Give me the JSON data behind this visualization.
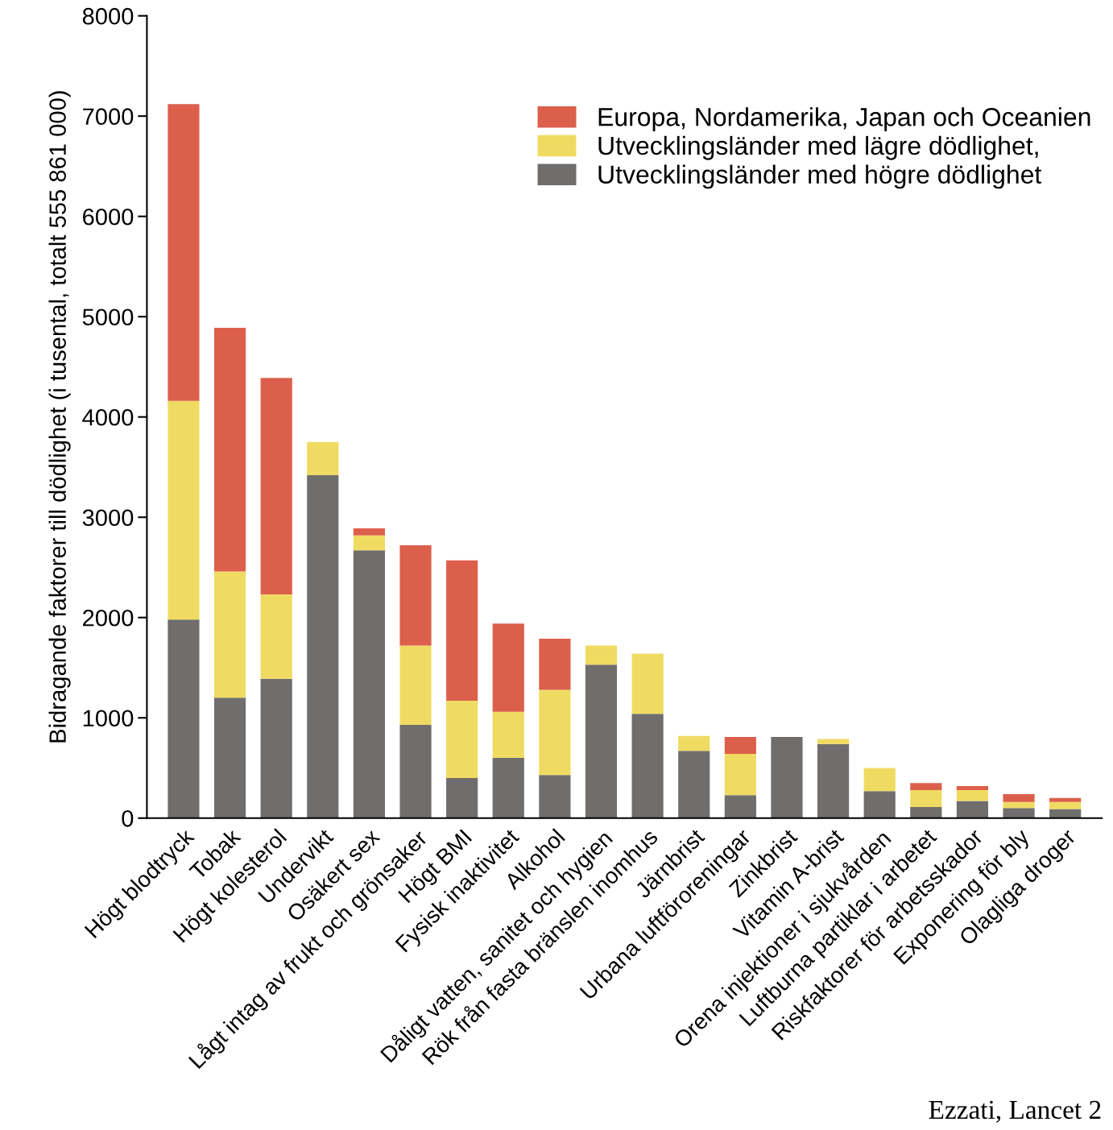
{
  "chart_data": {
    "type": "bar",
    "stacked": true,
    "ylabel": "Bidragande faktorer till dödlighet (i tusental, totalt 555 861 000)",
    "categories": [
      "Högt blodtryck",
      "Tobak",
      "Högt kolesterol",
      "Undervikt",
      "Osäkert sex",
      "Lågt intag av frukt och grönsaker",
      "Högt BMI",
      "Fysisk inaktivitet",
      "Alkohol",
      "Dåligt vatten, sanitet och hygien",
      "Rök från fasta bränslen inomhus",
      "Järnbrist",
      "Urbana luftföroreningar",
      "Zinkbrist",
      "Vitamin A-brist",
      "Orena injektioner i sjukvården",
      "Luftburna partiklar i arbetet",
      "Riskfaktorer för arbetsskador",
      "Exponering för bly",
      "Olagliga droger"
    ],
    "series": [
      {
        "name": "Utvecklingsländer med högre dödlighet",
        "color": "#706e6c",
        "values": [
          1980,
          1200,
          1390,
          3420,
          2670,
          930,
          400,
          600,
          430,
          1530,
          1040,
          670,
          230,
          810,
          740,
          270,
          110,
          170,
          100,
          90
        ]
      },
      {
        "name": "Utvecklingsländer med lägre dödlighet,",
        "color": "#f0db62",
        "values": [
          2180,
          1260,
          840,
          330,
          150,
          790,
          770,
          460,
          850,
          190,
          600,
          150,
          410,
          0,
          50,
          230,
          170,
          110,
          60,
          70
        ]
      },
      {
        "name": "Europa, Nordamerika, Japan och Oceanien",
        "color": "#dc5f4c",
        "values": [
          2960,
          2430,
          2160,
          0,
          70,
          1000,
          1400,
          880,
          510,
          0,
          0,
          0,
          170,
          0,
          0,
          0,
          70,
          40,
          80,
          40
        ]
      }
    ],
    "ylim": [
      0,
      8000
    ],
    "yticks": [
      0,
      1000,
      2000,
      3000,
      4000,
      5000,
      6000,
      7000,
      8000
    ],
    "grid": false,
    "legend": "top right",
    "annotations": [
      "Ezzati, Lancet 2"
    ]
  }
}
